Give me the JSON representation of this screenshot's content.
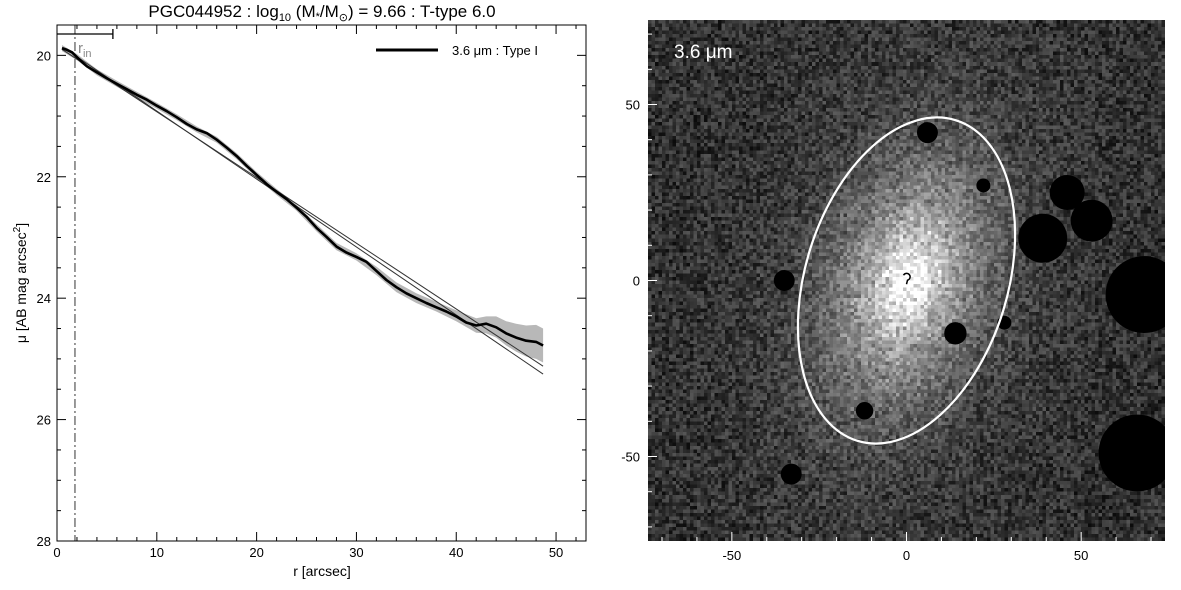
{
  "chart_data": [
    {
      "type": "line",
      "title": {
        "prefix": "PGC044952 : log",
        "sub": "10",
        "mid1": " (M",
        "star": "*",
        "mid2": "/M",
        "sun": "⊙",
        "suffix": ") = 9.66 : T-type 6.0"
      },
      "xlabel": "r [arcsec]",
      "ylabel": {
        "main": "μ [AB mag arcsec",
        "sup": "2",
        "end": "]"
      },
      "xlim": [
        0,
        53
      ],
      "ylim": [
        28,
        19.5
      ],
      "y_inverted": true,
      "x_ticks": [
        0,
        10,
        20,
        30,
        40,
        50
      ],
      "y_ticks": [
        20,
        22,
        24,
        26,
        28
      ],
      "legend": {
        "position": "top-right",
        "label": "3.6 μm : Type I"
      },
      "annotations": {
        "r_in_main": "r",
        "r_in_sub": "in",
        "r_in_x": 1.8
      },
      "series": [
        {
          "name": "3.6 μm : Type I",
          "color": "#000000",
          "x": [
            0.5,
            1.0,
            1.5,
            2.0,
            2.5,
            3,
            4,
            5,
            6,
            7,
            8,
            9,
            10,
            11,
            12,
            13,
            14,
            15,
            16,
            17,
            18,
            19,
            20,
            21,
            22,
            23,
            24,
            25,
            26,
            27,
            28,
            29,
            30,
            31,
            32,
            33,
            34,
            35,
            36,
            37,
            38,
            39,
            40,
            41,
            42,
            43,
            44,
            45,
            46,
            47,
            48,
            48.7
          ],
          "y": [
            19.88,
            19.91,
            19.95,
            20.03,
            20.11,
            20.18,
            20.28,
            20.38,
            20.47,
            20.56,
            20.65,
            20.73,
            20.83,
            20.92,
            21.02,
            21.13,
            21.22,
            21.28,
            21.39,
            21.52,
            21.66,
            21.82,
            21.97,
            22.12,
            22.25,
            22.37,
            22.51,
            22.66,
            22.84,
            22.99,
            23.15,
            23.25,
            23.32,
            23.4,
            23.55,
            23.7,
            23.82,
            23.92,
            24.0,
            24.08,
            24.15,
            24.22,
            24.3,
            24.4,
            24.45,
            24.42,
            24.48,
            24.58,
            24.65,
            24.7,
            24.72,
            24.78
          ]
        }
      ],
      "uncertainty_band": {
        "color": "#b8b8b8",
        "x": [
          0.5,
          2,
          4,
          6,
          8,
          10,
          12,
          14,
          16,
          18,
          20,
          22,
          24,
          26,
          28,
          30,
          32,
          34,
          36,
          38,
          40,
          42,
          43,
          44,
          45,
          46,
          47,
          48,
          48.7
        ],
        "lower": [
          19.83,
          19.98,
          20.23,
          20.42,
          20.6,
          20.78,
          20.97,
          21.17,
          21.34,
          21.61,
          21.92,
          22.2,
          22.46,
          22.78,
          23.09,
          23.26,
          23.48,
          23.74,
          23.92,
          24.06,
          24.2,
          24.33,
          24.3,
          24.3,
          24.38,
          24.42,
          24.45,
          24.44,
          24.5
        ],
        "upper": [
          19.93,
          20.08,
          20.33,
          20.52,
          20.7,
          20.88,
          21.07,
          21.27,
          21.44,
          21.71,
          22.02,
          22.3,
          22.56,
          22.9,
          23.21,
          23.38,
          23.62,
          23.9,
          24.08,
          24.22,
          24.38,
          24.57,
          24.58,
          24.65,
          24.78,
          24.88,
          24.96,
          25.0,
          25.06
        ]
      },
      "fit_lines": [
        {
          "name": "",
          "x": [
            1.8,
            48.7
          ],
          "y": [
            20.0,
            25.25
          ],
          "color": "#333333"
        },
        {
          "name": "",
          "x": [
            0.5,
            48.7
          ],
          "y": [
            19.9,
            25.12
          ],
          "color": "#333333"
        }
      ],
      "top_bar": {
        "x": [
          0,
          5.6
        ]
      }
    },
    {
      "type": "heatmap",
      "label": "3.6 μm",
      "xlim": [
        -74,
        74
      ],
      "ylim": [
        -74,
        74
      ],
      "x_ticks": [
        -50,
        0,
        50
      ],
      "y_ticks": [
        -50,
        0,
        50
      ],
      "x_tick_labels": [
        "-50",
        "0",
        "50"
      ],
      "y_tick_labels": [
        "-50",
        "0",
        "50"
      ],
      "galaxy": {
        "center": [
          0,
          0
        ],
        "a": 48,
        "b": 29,
        "pa_deg": 17
      },
      "ellipse": {
        "center": [
          0,
          0
        ],
        "a": 48,
        "b": 29,
        "pa_deg": 17,
        "color": "#ffffff"
      },
      "masks": [
        {
          "x": 6,
          "y": 42,
          "r": 3
        },
        {
          "x": 14,
          "y": -15,
          "r": 3.2
        },
        {
          "x": -12,
          "y": -37,
          "r": 2.5
        },
        {
          "x": 39,
          "y": 12,
          "r": 7
        },
        {
          "x": 46,
          "y": 25,
          "r": 5
        },
        {
          "x": 53,
          "y": 17,
          "r": 6
        },
        {
          "x": 68,
          "y": -4,
          "r": 11
        },
        {
          "x": 66,
          "y": -49,
          "r": 11
        },
        {
          "x": -35,
          "y": 0,
          "r": 3
        },
        {
          "x": 28,
          "y": -12,
          "r": 2
        },
        {
          "x": -33,
          "y": -55,
          "r": 3
        },
        {
          "x": 22,
          "y": 27,
          "r": 2
        }
      ]
    }
  ]
}
